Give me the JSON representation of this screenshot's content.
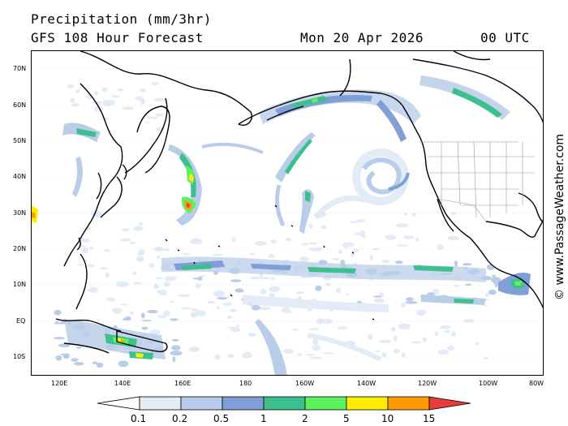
{
  "header": {
    "title": "Precipitation (mm/3hr)",
    "model": "GFS 108 Hour Forecast",
    "date": "Mon 20 Apr 2026",
    "time": "00 UTC"
  },
  "map": {
    "lat_labels": [
      "70N",
      "60N",
      "50N",
      "40N",
      "30N",
      "20N",
      "10N",
      "EQ",
      "10S"
    ],
    "lon_labels": [
      "120E",
      "140E",
      "160E",
      "180",
      "160W",
      "140W",
      "120W",
      "100W",
      "80W"
    ],
    "credit": "© www.PassageWeather.com"
  },
  "legend": {
    "labels": [
      "0.1",
      "0.2",
      "0.5",
      "1",
      "2",
      "5",
      "10",
      "15"
    ],
    "colors": [
      "#ffffff",
      "#e2ebf6",
      "#b9cde8",
      "#7f9fd6",
      "#3ec08e",
      "#5ff060",
      "#ffee00",
      "#ff9900",
      "#e83c3c"
    ]
  }
}
